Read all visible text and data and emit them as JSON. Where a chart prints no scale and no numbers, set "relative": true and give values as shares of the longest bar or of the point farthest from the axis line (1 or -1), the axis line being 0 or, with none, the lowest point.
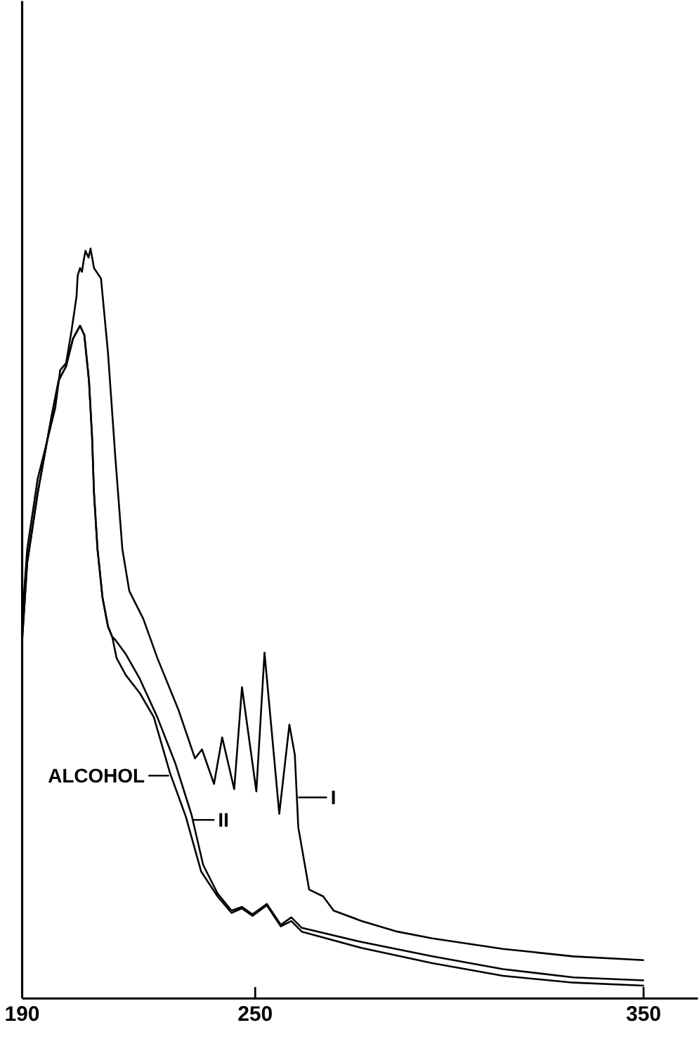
{
  "chart_data": {
    "type": "line",
    "relative": true,
    "legend": "bottom left",
    "xlim": [
      190,
      364
    ],
    "xticks": [
      190,
      250,
      350
    ],
    "series": [
      {
        "name": "I",
        "color": "#000000",
        "x": [
          190,
          191.3,
          194,
          196.7,
          198.5,
          199.8,
          201.3,
          202.7,
          204,
          204.3,
          204.9,
          205.4,
          205.8,
          206.3,
          207.1,
          207.6,
          208.5,
          210.3,
          212.1,
          214,
          215.8,
          217.6,
          221.2,
          224.8,
          230.3,
          234.5,
          236.3,
          239.4,
          241.5,
          244.6,
          246.6,
          250.3,
          252.4,
          256.2,
          258.8,
          260.2,
          261.1,
          263.9,
          267.5,
          270.2,
          277.5,
          286.6,
          295.6,
          313.8,
          331.9,
          350.1
        ],
        "values": [
          0.506,
          0.599,
          0.693,
          0.749,
          0.787,
          0.838,
          0.847,
          0.89,
          0.936,
          0.964,
          0.974,
          0.969,
          0.983,
          0.997,
          0.988,
          1.0,
          0.974,
          0.96,
          0.861,
          0.721,
          0.599,
          0.543,
          0.506,
          0.454,
          0.384,
          0.32,
          0.332,
          0.286,
          0.348,
          0.279,
          0.415,
          0.276,
          0.461,
          0.246,
          0.365,
          0.325,
          0.228,
          0.145,
          0.136,
          0.117,
          0.103,
          0.089,
          0.08,
          0.066,
          0.056,
          0.051
        ]
      },
      {
        "name": "II",
        "color": "#000000",
        "x": [
          190,
          191.3,
          194,
          197.6,
          199.4,
          201.3,
          203.1,
          204.9,
          206,
          207.2,
          208,
          208.5,
          209.4,
          210.7,
          212.1,
          213.2,
          214,
          216.7,
          220.3,
          224.8,
          229.4,
          233.6,
          236.6,
          240.3,
          243.9,
          246.6,
          249.3,
          253,
          256.6,
          259.3,
          262,
          277.5,
          295.6,
          313.8,
          331.9,
          350.1
        ],
        "values": [
          0.478,
          0.581,
          0.674,
          0.777,
          0.824,
          0.843,
          0.88,
          0.897,
          0.885,
          0.824,
          0.749,
          0.674,
          0.599,
          0.534,
          0.496,
          0.482,
          0.478,
          0.459,
          0.426,
          0.375,
          0.314,
          0.245,
          0.178,
          0.14,
          0.117,
          0.122,
          0.112,
          0.126,
          0.098,
          0.108,
          0.094,
          0.075,
          0.056,
          0.039,
          0.028,
          0.024
        ]
      },
      {
        "name": "ALCOHOL",
        "color": "#000000",
        "x": [
          190,
          191.3,
          194,
          197.6,
          199.4,
          201.3,
          203.1,
          204.9,
          206,
          207.2,
          208,
          208.5,
          209.4,
          210.7,
          212.1,
          213.2,
          214.3,
          216.7,
          220.3,
          223.9,
          228.1,
          232.1,
          236.1,
          240.3,
          243.9,
          246.6,
          249.3,
          253,
          256.6,
          259.3,
          262,
          277.5,
          295.6,
          313.8,
          331.9,
          350.1
        ],
        "values": [
          0.478,
          0.581,
          0.674,
          0.777,
          0.824,
          0.843,
          0.88,
          0.897,
          0.885,
          0.824,
          0.749,
          0.674,
          0.599,
          0.534,
          0.496,
          0.482,
          0.454,
          0.431,
          0.407,
          0.375,
          0.3,
          0.243,
          0.169,
          0.136,
          0.114,
          0.12,
          0.11,
          0.124,
          0.096,
          0.103,
          0.089,
          0.067,
          0.047,
          0.03,
          0.021,
          0.017
        ]
      }
    ]
  }
}
